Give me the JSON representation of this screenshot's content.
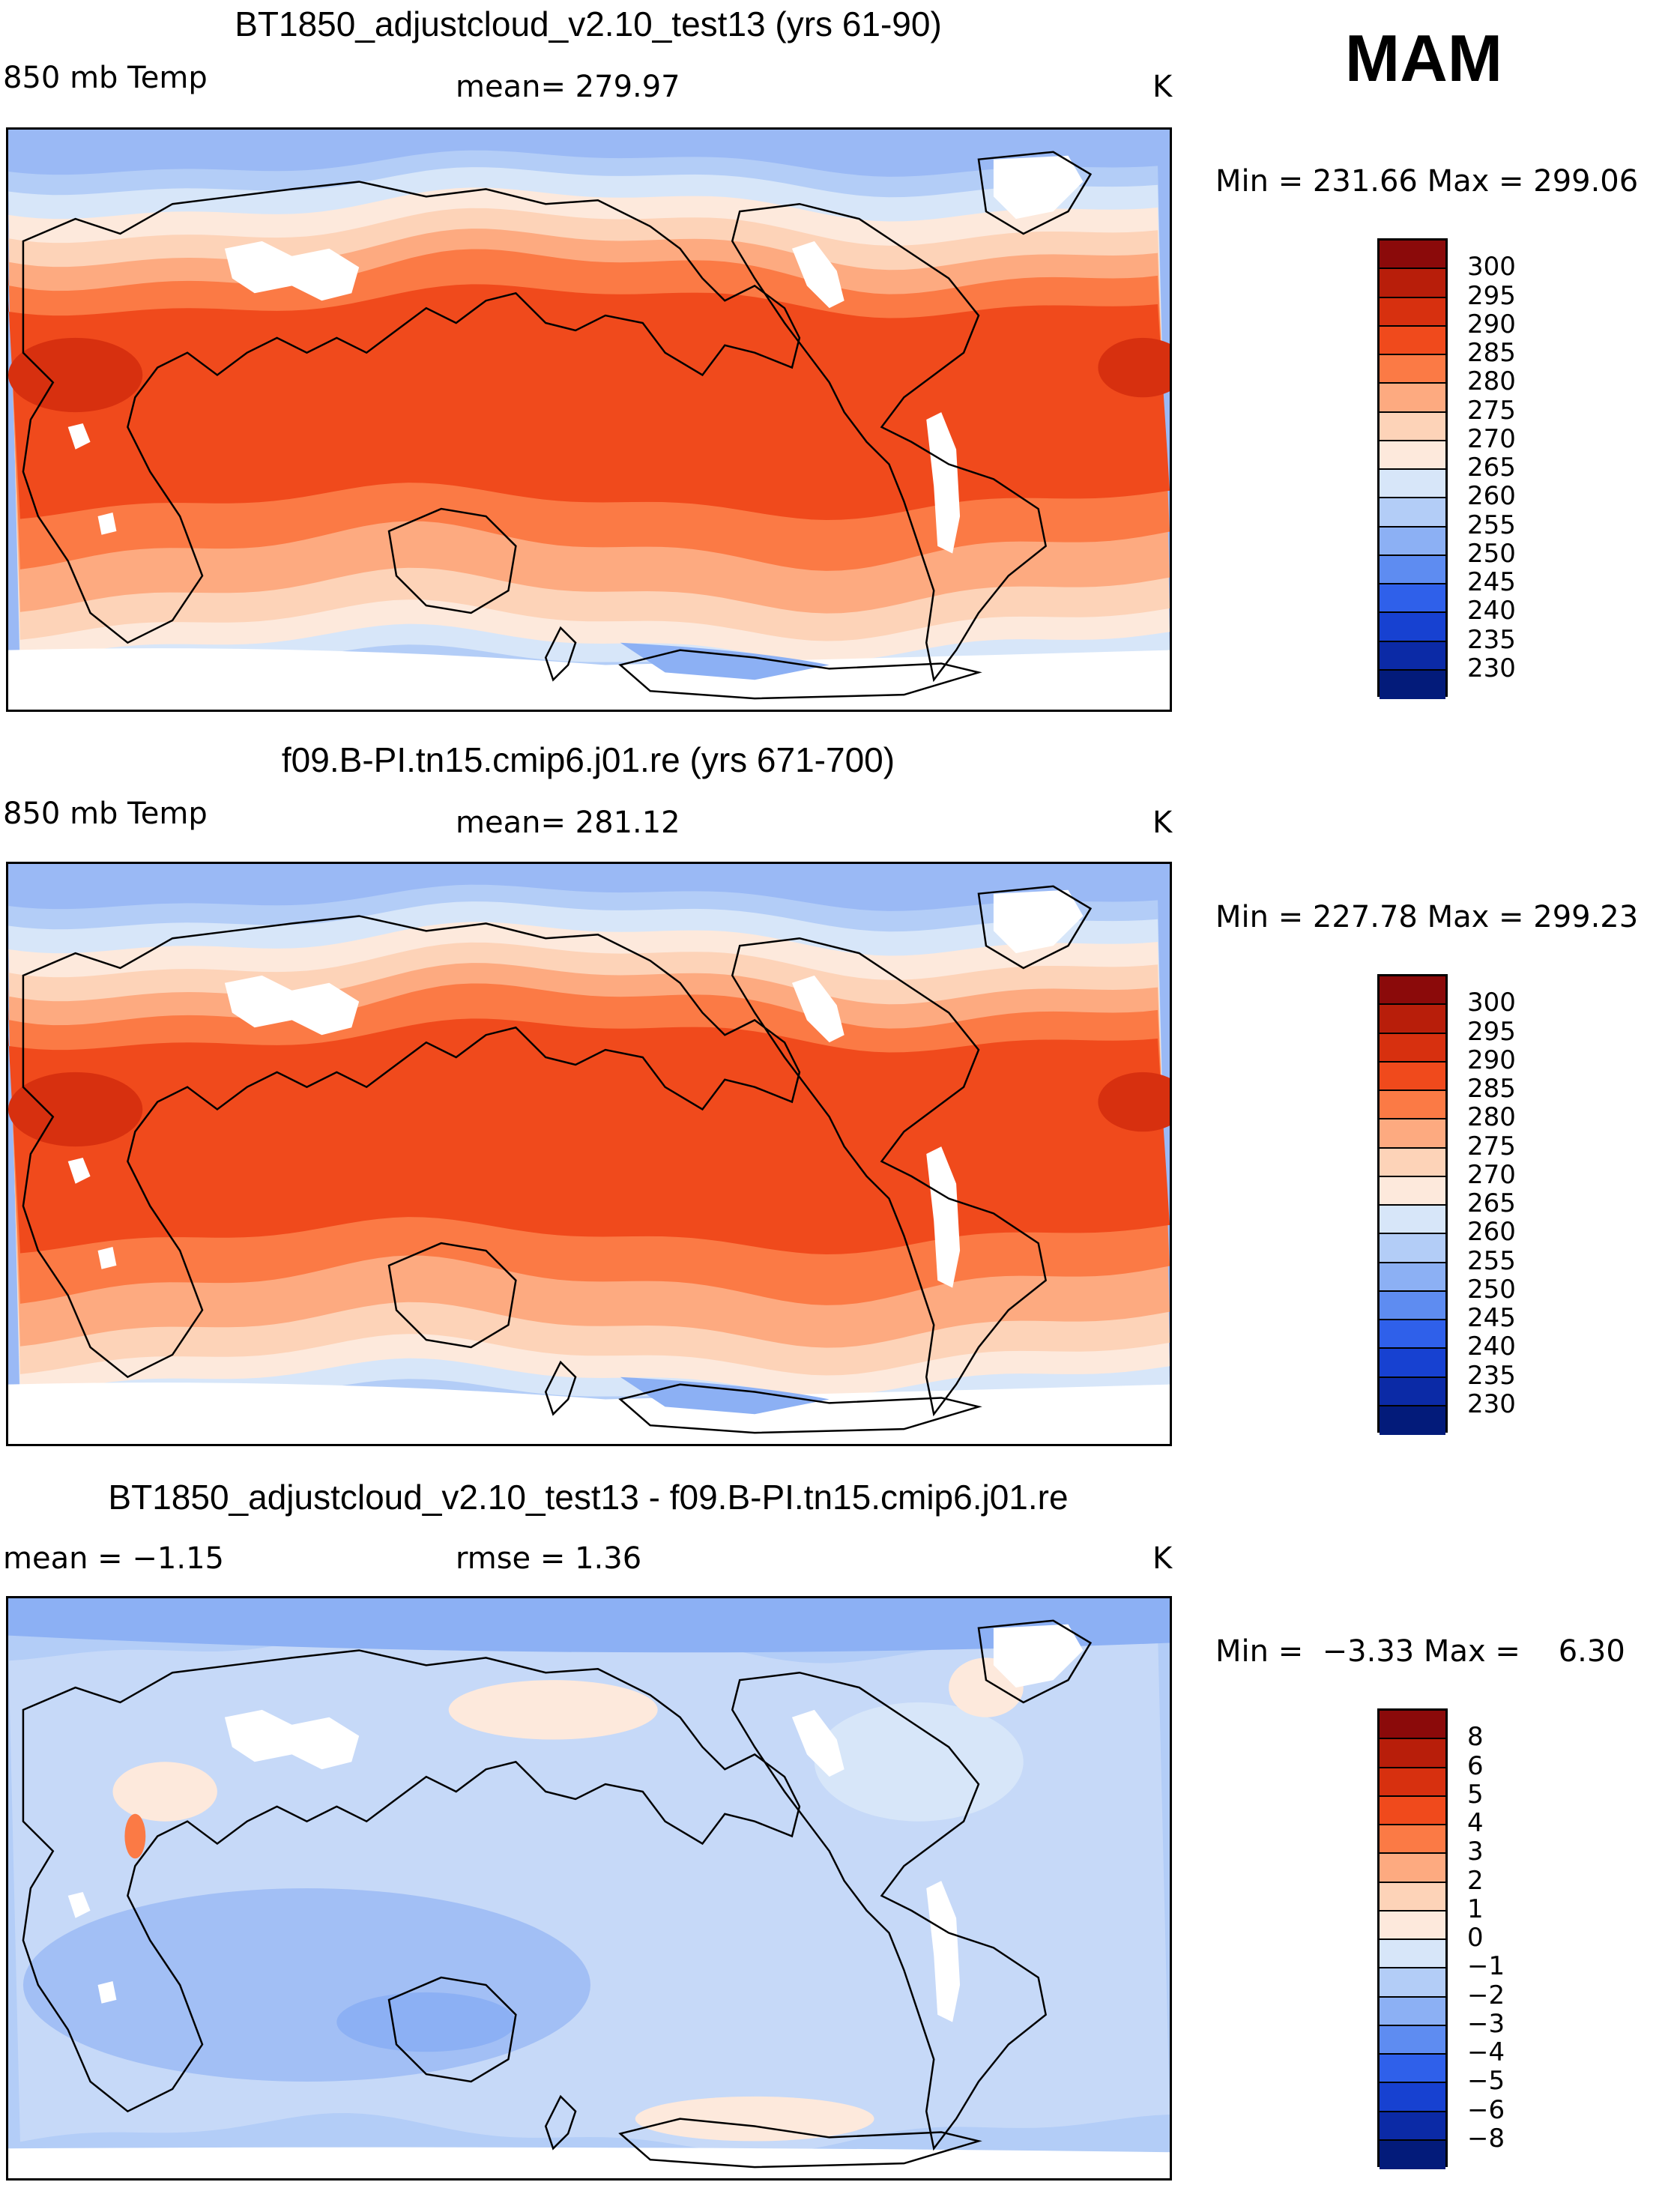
{
  "season": "MAM",
  "panels": [
    {
      "title": "BT1850_adjustcloud_v2.10_test13 (yrs 61-90)",
      "field": "850 mb Temp",
      "stat": "mean= 279.97",
      "unit": "K",
      "minmax": "Min = 231.66 Max = 299.06",
      "colorbar": {
        "labels": [
          "300",
          "295",
          "290",
          "285",
          "280",
          "275",
          "270",
          "265",
          "260",
          "255",
          "250",
          "245",
          "240",
          "235",
          "230"
        ],
        "colors": [
          "#8b0a0a",
          "#b81e0a",
          "#d7300f",
          "#f04a1c",
          "#fb7a45",
          "#fdaa80",
          "#fdd3b8",
          "#fde9dc",
          "#d7e6f9",
          "#b3cdf7",
          "#8cb0f4",
          "#5e8cf1",
          "#2f60ea",
          "#1741d1",
          "#0b2aa6",
          "#031b7a"
        ]
      },
      "map_type": "abs",
      "chart_data": {
        "type": "heatmap",
        "title": "BT1850_adjustcloud_v2.10_test13 (yrs 61-90)",
        "variable": "850 mb Temp",
        "units": "K",
        "mean": 279.97,
        "min": 231.66,
        "max": 299.06,
        "contour_levels": [
          230,
          235,
          240,
          245,
          250,
          255,
          260,
          265,
          270,
          275,
          280,
          285,
          290,
          295,
          300
        ]
      }
    },
    {
      "title": "f09.B-PI.tn15.cmip6.j01.re (yrs 671-700)",
      "field": "850 mb Temp",
      "stat": "mean= 281.12",
      "unit": "K",
      "minmax": "Min = 227.78 Max = 299.23",
      "colorbar": {
        "labels": [
          "300",
          "295",
          "290",
          "285",
          "280",
          "275",
          "270",
          "265",
          "260",
          "255",
          "250",
          "245",
          "240",
          "235",
          "230"
        ],
        "colors": [
          "#8b0a0a",
          "#b81e0a",
          "#d7300f",
          "#f04a1c",
          "#fb7a45",
          "#fdaa80",
          "#fdd3b8",
          "#fde9dc",
          "#d7e6f9",
          "#b3cdf7",
          "#8cb0f4",
          "#5e8cf1",
          "#2f60ea",
          "#1741d1",
          "#0b2aa6",
          "#031b7a"
        ]
      },
      "map_type": "abs",
      "chart_data": {
        "type": "heatmap",
        "title": "f09.B-PI.tn15.cmip6.j01.re (yrs 671-700)",
        "variable": "850 mb Temp",
        "units": "K",
        "mean": 281.12,
        "min": 227.78,
        "max": 299.23,
        "contour_levels": [
          230,
          235,
          240,
          245,
          250,
          255,
          260,
          265,
          270,
          275,
          280,
          285,
          290,
          295,
          300
        ]
      }
    },
    {
      "title": "BT1850_adjustcloud_v2.10_test13 - f09.B-PI.tn15.cmip6.j01.re",
      "field": "mean =  −1.15",
      "stat": "rmse =    1.36",
      "unit": "K",
      "minmax": "Min =  −3.33 Max =    6.30",
      "colorbar": {
        "labels": [
          "8",
          "6",
          "5",
          "4",
          "3",
          "2",
          "1",
          "0",
          "−1",
          "−2",
          "−3",
          "−4",
          "−5",
          "−6",
          "−8"
        ],
        "colors": [
          "#8b0a0a",
          "#b81e0a",
          "#d7300f",
          "#f04a1c",
          "#fb7a45",
          "#fdaa80",
          "#fdd3b8",
          "#fde9dc",
          "#d7e6f9",
          "#b3cdf7",
          "#8cb0f4",
          "#5e8cf1",
          "#2f60ea",
          "#1741d1",
          "#0b2aa6",
          "#031b7a"
        ]
      },
      "map_type": "diff",
      "chart_data": {
        "type": "heatmap",
        "title": "BT1850_adjustcloud_v2.10_test13 - f09.B-PI.tn15.cmip6.j01.re",
        "variable": "850 mb Temp difference",
        "units": "K",
        "mean": -1.15,
        "rmse": 1.36,
        "min": -3.33,
        "max": 6.3,
        "contour_levels": [
          -8,
          -6,
          -5,
          -4,
          -3,
          -2,
          -1,
          0,
          1,
          2,
          3,
          4,
          5,
          6,
          8
        ]
      }
    }
  ]
}
